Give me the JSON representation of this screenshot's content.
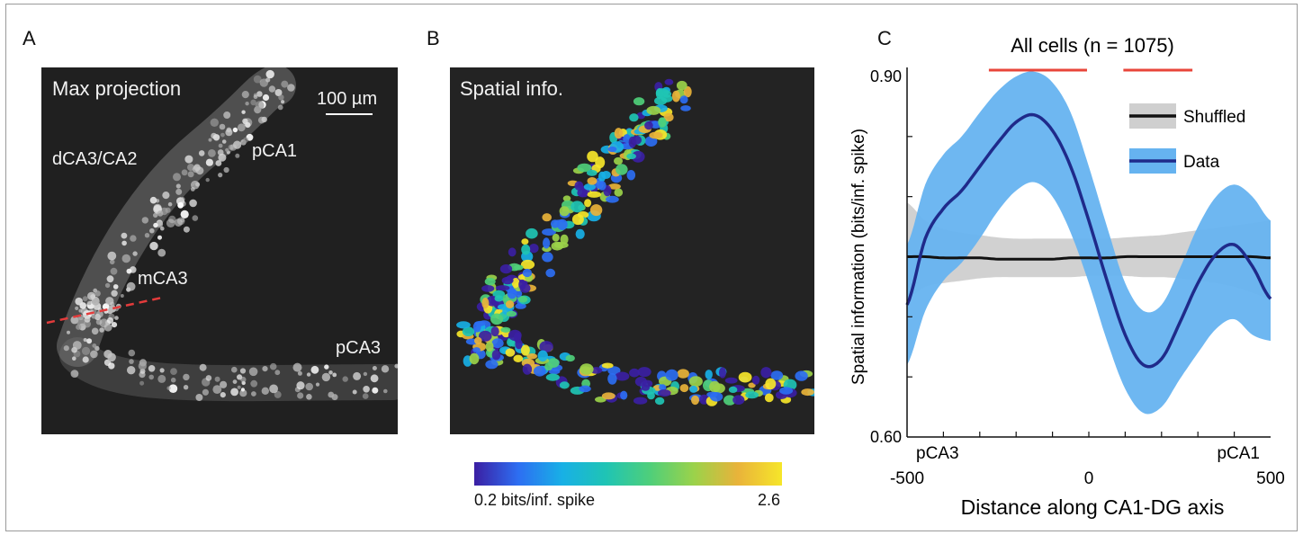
{
  "panels": {
    "a": {
      "label": "A",
      "title": "Max projection",
      "scalebar": "100 µm",
      "regions": {
        "dca3": "dCA3/CA2",
        "pca1": "pCA1",
        "mca3": "mCA3",
        "pca3": "pCA3"
      }
    },
    "b": {
      "label": "B",
      "title": "Spatial info.",
      "colorbar": {
        "min_label": "0.2 bits/inf. spike",
        "max_label": "2.6",
        "min": 0.2,
        "max": 2.6
      }
    },
    "c": {
      "label": "C",
      "title": "All cells (n = 1075)",
      "xlabel": "Distance along CA1-DG axis",
      "ylabel": "Spatial information (bits/inf. spike)",
      "x_ticks": [
        "-500",
        "0",
        "500"
      ],
      "y_ticks": [
        "0.60",
        "0.90"
      ],
      "region_left": "pCA3",
      "region_right": "pCA1",
      "legend": [
        {
          "label": "Shuffled"
        },
        {
          "label": "Data"
        }
      ]
    }
  },
  "colors": {
    "data_line": "#1f2a8a",
    "data_band": "#66b3f0",
    "shuffled_line": "#111111",
    "shuffled_band": "#cfcfcf",
    "sig_bar": "#e8453a"
  },
  "chart_data": {
    "type": "line",
    "title": "All cells (n = 1075)",
    "xlabel": "Distance along CA1-DG axis",
    "ylabel": "Spatial information (bits/inf. spike)",
    "xlim": [
      -500,
      500
    ],
    "ylim": [
      0.6,
      0.9
    ],
    "legend_position": "top-right",
    "x": [
      -500,
      -450,
      -400,
      -350,
      -300,
      -250,
      -200,
      -150,
      -100,
      -50,
      0,
      50,
      100,
      150,
      200,
      250,
      300,
      350,
      400,
      450,
      500
    ],
    "series": [
      {
        "name": "Data",
        "values": [
          0.71,
          0.765,
          0.79,
          0.805,
          0.825,
          0.845,
          0.862,
          0.868,
          0.855,
          0.825,
          0.78,
          0.73,
          0.685,
          0.66,
          0.665,
          0.695,
          0.728,
          0.752,
          0.76,
          0.742,
          0.715
        ],
        "lower": [
          0.66,
          0.705,
          0.73,
          0.745,
          0.765,
          0.788,
          0.805,
          0.812,
          0.8,
          0.77,
          0.728,
          0.68,
          0.64,
          0.62,
          0.625,
          0.648,
          0.67,
          0.69,
          0.698,
          0.685,
          0.68
        ],
        "upper": [
          0.76,
          0.81,
          0.835,
          0.85,
          0.87,
          0.888,
          0.9,
          0.904,
          0.895,
          0.87,
          0.825,
          0.775,
          0.728,
          0.705,
          0.71,
          0.74,
          0.775,
          0.8,
          0.81,
          0.8,
          0.78
        ]
      },
      {
        "name": "Shuffled",
        "values": [
          0.75,
          0.75,
          0.749,
          0.749,
          0.749,
          0.748,
          0.748,
          0.748,
          0.748,
          0.749,
          0.749,
          0.749,
          0.75,
          0.75,
          0.75,
          0.75,
          0.75,
          0.75,
          0.75,
          0.75,
          0.749
        ],
        "lower": [
          0.715,
          0.725,
          0.728,
          0.73,
          0.732,
          0.733,
          0.733,
          0.733,
          0.733,
          0.733,
          0.734,
          0.734,
          0.734,
          0.733,
          0.733,
          0.732,
          0.73,
          0.728,
          0.725,
          0.72,
          0.715
        ],
        "upper": [
          0.795,
          0.78,
          0.773,
          0.77,
          0.768,
          0.766,
          0.765,
          0.765,
          0.765,
          0.765,
          0.765,
          0.765,
          0.766,
          0.767,
          0.768,
          0.77,
          0.772,
          0.774,
          0.776,
          0.778,
          0.78
        ]
      }
    ],
    "significance_bars": [
      [
        -275,
        -5
      ],
      [
        95,
        285
      ]
    ]
  }
}
